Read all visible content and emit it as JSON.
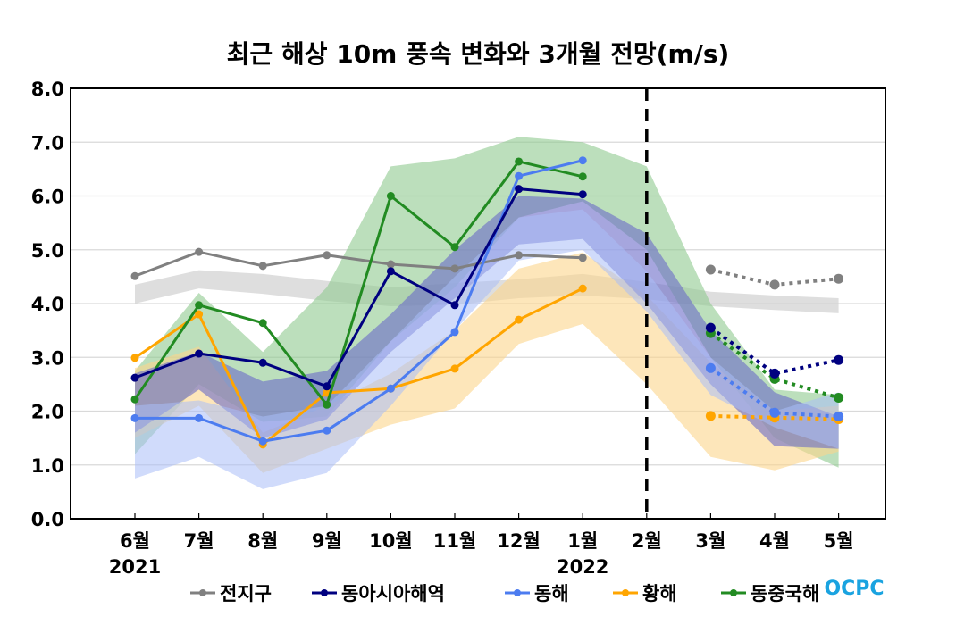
{
  "chart_data": {
    "type": "line",
    "title": "최근 해상 10m 풍속 변화와 3개월 전망(m/s)",
    "xlabel": "",
    "ylabel": "",
    "ylim": [
      0,
      8
    ],
    "yticks": [
      "0.0",
      "1.0",
      "2.0",
      "3.0",
      "4.0",
      "5.0",
      "6.0",
      "7.0",
      "8.0"
    ],
    "grid": true,
    "categories": [
      "6월",
      "7월",
      "8월",
      "9월",
      "10월",
      "11월",
      "12월",
      "1월",
      "2월",
      "3월",
      "4월",
      "5월"
    ],
    "year_labels": [
      {
        "category_index": 0,
        "label": "2021"
      },
      {
        "category_index": 7,
        "label": "2022"
      }
    ],
    "divider": {
      "category_index": 8,
      "style": "dashed",
      "color": "#000000"
    },
    "legend_position": "bottom",
    "series": [
      {
        "name": "전지구",
        "color": "#808080",
        "band_color": "#d3d3d3",
        "observed": [
          4.51,
          4.96,
          4.7,
          4.9,
          4.73,
          4.65,
          4.9,
          4.85,
          null,
          null,
          null,
          null
        ],
        "forecast": [
          null,
          null,
          null,
          null,
          null,
          null,
          null,
          null,
          null,
          4.63,
          4.35,
          4.46
        ],
        "band_upper": [
          4.35,
          4.62,
          4.55,
          4.42,
          4.3,
          4.38,
          4.45,
          4.55,
          4.4,
          4.22,
          4.15,
          4.1
        ],
        "band_lower": [
          4.0,
          4.28,
          4.18,
          4.05,
          3.95,
          3.98,
          4.1,
          4.15,
          4.08,
          3.95,
          3.88,
          3.82
        ]
      },
      {
        "name": "동아시아해역",
        "color": "#000080",
        "band_color": "#6a6ac8",
        "observed": [
          2.62,
          3.07,
          2.9,
          2.46,
          4.6,
          3.97,
          6.13,
          6.03,
          null,
          null,
          null,
          null
        ],
        "forecast": [
          null,
          null,
          null,
          null,
          null,
          null,
          null,
          null,
          null,
          3.55,
          2.7,
          2.95
        ],
        "band_upper": [
          2.7,
          3.1,
          2.55,
          2.75,
          3.8,
          5.0,
          6.0,
          5.95,
          5.3,
          3.5,
          2.35,
          1.9
        ],
        "band_lower": [
          1.6,
          2.4,
          1.5,
          1.85,
          3.1,
          4.1,
          5.1,
          5.2,
          4.0,
          2.5,
          1.35,
          1.3
        ]
      },
      {
        "name": "동해",
        "color": "#4c7cf0",
        "band_color": "#a9bdf8",
        "observed": [
          1.87,
          1.87,
          1.44,
          1.64,
          2.42,
          3.47,
          6.37,
          6.66,
          null,
          null,
          null,
          null
        ],
        "forecast": [
          null,
          null,
          null,
          null,
          null,
          null,
          null,
          null,
          null,
          2.8,
          1.97,
          1.9
        ],
        "band_upper": [
          2.1,
          2.2,
          1.9,
          2.1,
          3.3,
          4.5,
          5.6,
          5.75,
          4.6,
          3.0,
          2.0,
          2.35
        ],
        "band_lower": [
          0.75,
          1.15,
          0.55,
          0.85,
          2.1,
          3.5,
          4.8,
          5.0,
          3.85,
          2.3,
          1.7,
          1.3
        ]
      },
      {
        "name": "황해",
        "color": "#ffa500",
        "band_color": "#fcd68c",
        "observed": [
          2.99,
          3.8,
          1.38,
          2.34,
          2.42,
          2.79,
          3.7,
          4.28,
          null,
          null,
          null,
          null
        ],
        "forecast": [
          null,
          null,
          null,
          null,
          null,
          null,
          null,
          null,
          null,
          1.91,
          1.88,
          1.85
        ],
        "band_upper": [
          2.8,
          3.2,
          1.6,
          2.1,
          2.7,
          3.5,
          4.65,
          4.95,
          4.15,
          2.9,
          2.0,
          2.1
        ],
        "band_lower": [
          1.5,
          2.1,
          0.85,
          1.3,
          1.75,
          2.05,
          3.25,
          3.62,
          2.5,
          1.15,
          0.9,
          1.25
        ]
      },
      {
        "name": "동중국해",
        "color": "#228b22",
        "band_color": "#8fc98f",
        "observed": [
          2.22,
          3.97,
          3.64,
          2.12,
          6.0,
          5.05,
          6.64,
          6.36,
          null,
          null,
          null,
          null
        ],
        "forecast": [
          null,
          null,
          null,
          null,
          null,
          null,
          null,
          null,
          null,
          3.45,
          2.6,
          2.25
        ],
        "band_upper": [
          2.75,
          4.2,
          3.1,
          4.3,
          6.55,
          6.7,
          7.1,
          7.0,
          6.55,
          4.0,
          2.4,
          2.3
        ],
        "band_lower": [
          1.2,
          2.5,
          1.8,
          1.9,
          3.3,
          4.3,
          5.6,
          5.9,
          5.0,
          3.0,
          1.5,
          0.95
        ]
      }
    ]
  },
  "branding": {
    "logo_text": "OCPC",
    "logo_color": "#1aa3e0"
  }
}
